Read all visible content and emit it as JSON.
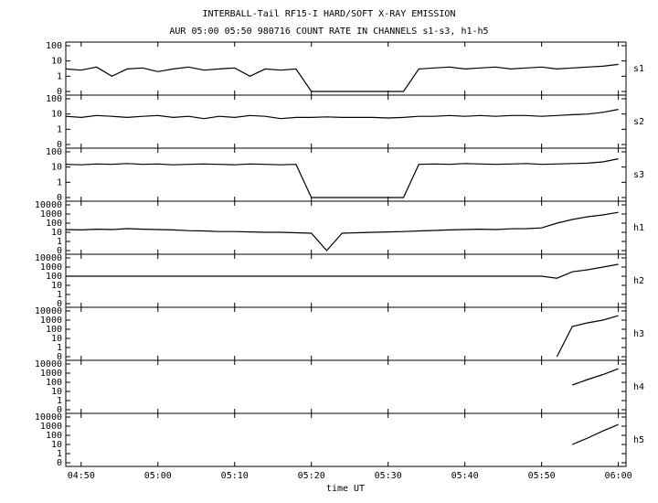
{
  "chart_data": {
    "type": "line",
    "log_y": true,
    "color": "#000000",
    "title": "INTERBALL-Tail RF15-I HARD/SOFT X-RAY EMISSION",
    "subtitle": "AUR 05:00 05:50 980716  COUNT RATE IN CHANNELS s1-s3, h1-h5",
    "x_label": "time UT",
    "x": [
      "04:48",
      "04:50",
      "04:52",
      "04:54",
      "04:56",
      "04:58",
      "05:00",
      "05:02",
      "05:04",
      "05:06",
      "05:08",
      "05:10",
      "05:12",
      "05:14",
      "05:16",
      "05:18",
      "05:20",
      "05:22",
      "05:24",
      "05:26",
      "05:28",
      "05:30",
      "05:32",
      "05:34",
      "05:36",
      "05:38",
      "05:40",
      "05:42",
      "05:44",
      "05:46",
      "05:48",
      "05:50",
      "05:52",
      "05:54",
      "05:56",
      "05:58",
      "06:00"
    ],
    "xlim": [
      "04:48",
      "06:01"
    ],
    "xticks": [
      "04:50",
      "05:00",
      "05:10",
      "05:20",
      "05:30",
      "05:40",
      "05:50",
      "06:00"
    ],
    "series": [
      {
        "name": "s1",
        "ylim": [
          0.1,
          100
        ],
        "yticks": [
          {
            "value": 0.1,
            "label": "0"
          },
          1,
          10,
          100
        ],
        "values": [
          3,
          2.5,
          4,
          1,
          3,
          3.5,
          2,
          3,
          4,
          2.5,
          3,
          3.5,
          1,
          3,
          2.5,
          3,
          0.1,
          0.1,
          0.1,
          0.1,
          0.1,
          0.1,
          0.1,
          3,
          3.5,
          4,
          3,
          3.5,
          4,
          3,
          3.5,
          4,
          3,
          3.5,
          4,
          4.5,
          6
        ]
      },
      {
        "name": "s2",
        "ylim": [
          0.1,
          100
        ],
        "yticks": [
          {
            "value": 0.1,
            "label": "0"
          },
          1,
          10,
          100
        ],
        "values": [
          7,
          6,
          8,
          7,
          6,
          7,
          8,
          6,
          7,
          5,
          7,
          6,
          8,
          7,
          5,
          6,
          6,
          6.5,
          6,
          6,
          6,
          5.5,
          6,
          7,
          7,
          8,
          7,
          8,
          7,
          8,
          8,
          7,
          8,
          9,
          10,
          13,
          20
        ]
      },
      {
        "name": "s3",
        "ylim": [
          0.1,
          100
        ],
        "yticks": [
          {
            "value": 0.1,
            "label": "0"
          },
          1,
          10,
          100
        ],
        "values": [
          15,
          14,
          16,
          15,
          17,
          15,
          16,
          14,
          15,
          16,
          15,
          14,
          16,
          15,
          14,
          15,
          0.1,
          0.1,
          0.1,
          0.1,
          0.1,
          0.1,
          0.1,
          15,
          16,
          15,
          17,
          16,
          15,
          16,
          17,
          15,
          16,
          17,
          18,
          22,
          35
        ]
      },
      {
        "name": "h1",
        "ylim": [
          0.1,
          10000
        ],
        "yticks": [
          {
            "value": 0.1,
            "label": "0"
          },
          1,
          10,
          100,
          1000,
          10000
        ],
        "values": [
          20,
          18,
          22,
          20,
          25,
          22,
          20,
          18,
          15,
          14,
          12,
          12,
          11,
          10,
          10,
          9,
          8,
          0.1,
          8,
          9,
          10,
          11,
          12,
          14,
          16,
          18,
          20,
          22,
          20,
          24,
          25,
          30,
          100,
          250,
          500,
          800,
          1500
        ]
      },
      {
        "name": "h2",
        "ylim": [
          0.1,
          10000
        ],
        "yticks": [
          {
            "value": 0.1,
            "label": "0"
          },
          1,
          10,
          100,
          1000,
          10000
        ],
        "values": [
          100,
          100,
          100,
          100,
          100,
          100,
          100,
          100,
          100,
          100,
          100,
          100,
          100,
          100,
          100,
          100,
          100,
          100,
          100,
          100,
          100,
          100,
          100,
          100,
          100,
          100,
          100,
          100,
          100,
          100,
          100,
          100,
          60,
          300,
          500,
          1000,
          2000
        ]
      },
      {
        "name": "h3",
        "ylim": [
          0.1,
          10000
        ],
        "yticks": [
          {
            "value": 0.1,
            "label": "0"
          },
          1,
          10,
          100,
          1000,
          10000
        ],
        "values": [
          null,
          null,
          null,
          null,
          null,
          null,
          null,
          null,
          null,
          null,
          null,
          null,
          null,
          null,
          null,
          null,
          null,
          null,
          null,
          null,
          null,
          null,
          null,
          null,
          null,
          null,
          null,
          null,
          null,
          null,
          null,
          null,
          0.1,
          200,
          500,
          1000,
          3000
        ]
      },
      {
        "name": "h4",
        "ylim": [
          0.1,
          10000
        ],
        "yticks": [
          {
            "value": 0.1,
            "label": "0"
          },
          1,
          10,
          100,
          1000,
          10000
        ],
        "values": [
          null,
          null,
          null,
          null,
          null,
          null,
          null,
          null,
          null,
          null,
          null,
          null,
          null,
          null,
          null,
          null,
          null,
          null,
          null,
          null,
          null,
          null,
          null,
          null,
          null,
          null,
          null,
          null,
          null,
          null,
          null,
          null,
          null,
          50,
          200,
          700,
          3000
        ]
      },
      {
        "name": "h5",
        "ylim": [
          0.1,
          10000
        ],
        "yticks": [
          {
            "value": 0.1,
            "label": "0"
          },
          1,
          10,
          100,
          1000,
          10000
        ],
        "values": [
          null,
          null,
          null,
          null,
          null,
          null,
          null,
          null,
          null,
          null,
          null,
          null,
          null,
          null,
          null,
          null,
          null,
          null,
          null,
          null,
          null,
          null,
          null,
          null,
          null,
          null,
          null,
          null,
          null,
          null,
          null,
          null,
          null,
          10,
          50,
          300,
          1500
        ]
      }
    ]
  }
}
